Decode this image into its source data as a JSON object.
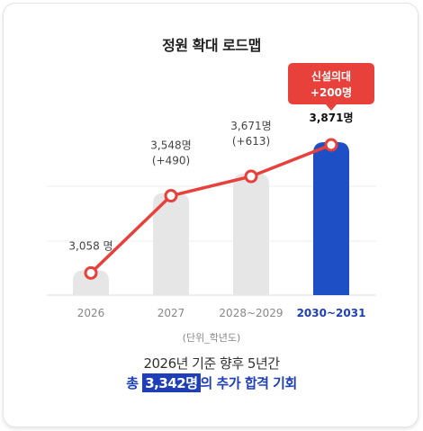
{
  "title": "정원 확대 로드맵",
  "unit_note": "(단위_학년도)",
  "footer": {
    "line1": "2026년 기준 향후 5년간",
    "prefix": "총 ",
    "highlight": "3,342명",
    "suffix": "의 추가 합격 기회"
  },
  "badge": {
    "line1": "신설의대",
    "line2": "+200명"
  },
  "colors": {
    "bar": "#e6e6e6",
    "bar_highlight": "#1f4fc4",
    "line": "#e8403a",
    "badge": "#e8403a",
    "highlight_tick": "#1f3fb8"
  },
  "chart_data": {
    "type": "bar",
    "categories": [
      "2026",
      "2027",
      "2028~2029",
      "2030~2031"
    ],
    "values": [
      3058,
      3548,
      3671,
      3871
    ],
    "value_labels": [
      "3,058 명",
      "3,548명",
      "3,671명",
      "3,871명"
    ],
    "change_labels": [
      "",
      "(+490)",
      "(+613)",
      ""
    ],
    "highlight_index": 3,
    "title": "정원 확대 로드맵",
    "xlabel": "(단위_학년도)",
    "ylabel": "",
    "grid": true,
    "overlay_line": true
  }
}
